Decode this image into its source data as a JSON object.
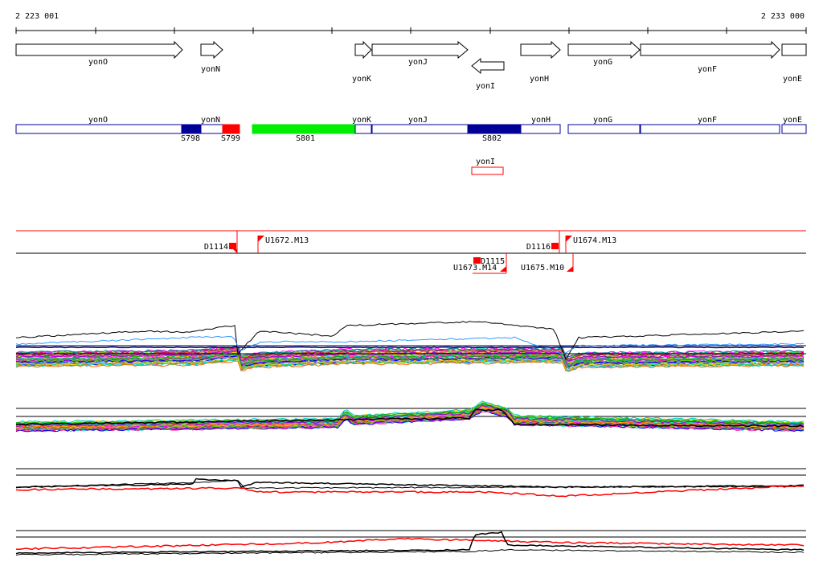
{
  "ruler": {
    "start_label": "2 223 001",
    "end_label": "2 233 000"
  },
  "genes": [
    {
      "name": "yonO",
      "strand": "+"
    },
    {
      "name": "yonN",
      "strand": "+"
    },
    {
      "name": "yonK",
      "strand": "+"
    },
    {
      "name": "yonJ",
      "strand": "+"
    },
    {
      "name": "yonI",
      "strand": "-"
    },
    {
      "name": "yonH",
      "strand": "+"
    },
    {
      "name": "yonG",
      "strand": "+"
    },
    {
      "name": "yonF",
      "strand": "+"
    },
    {
      "name": "yonE",
      "strand": "+"
    }
  ],
  "annotation_track": {
    "segments": [
      {
        "label": "yonO"
      },
      {
        "label": "yonN"
      },
      {
        "label": "yonK"
      },
      {
        "label": "yonJ"
      },
      {
        "label": "yonH"
      },
      {
        "label": "yonG"
      },
      {
        "label": "yonF"
      },
      {
        "label": "yonE"
      }
    ],
    "features": [
      {
        "label": "S798",
        "color": "#000099"
      },
      {
        "label": "S799",
        "color": "#ff0000"
      },
      {
        "label": "S801",
        "color": "#00ee00"
      },
      {
        "label": "S802",
        "color": "#000099"
      }
    ],
    "reverse_feature": {
      "label": "yonI",
      "color": "#ff0000"
    }
  },
  "transcription_units": [
    {
      "label": "D1114"
    },
    {
      "label": "U1672.M13"
    },
    {
      "label": "D1116"
    },
    {
      "label": "U1674.M13"
    },
    {
      "label": "D1115"
    },
    {
      "label": "U1673.M14"
    },
    {
      "label": "U1675.M10"
    }
  ],
  "colors": {
    "line": "#000000",
    "red": "#ff0000",
    "navy": "#000099",
    "green": "#00ee00"
  }
}
